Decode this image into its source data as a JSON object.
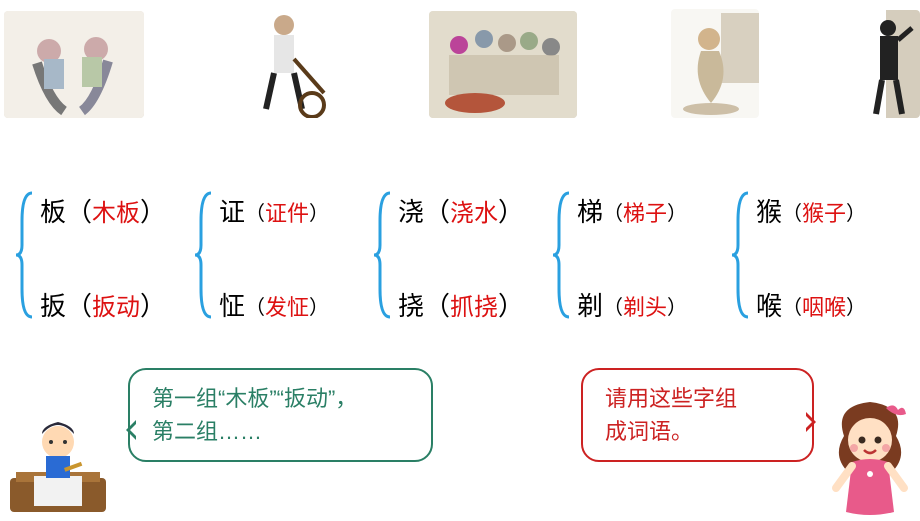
{
  "top_illustrations": [
    {
      "name": "two-boys-fighting",
      "w": 140,
      "h": 107
    },
    {
      "name": "rickshaw-man",
      "w": 98,
      "h": 109
    },
    {
      "name": "crowd-scene",
      "w": 148,
      "h": 107
    },
    {
      "name": "crouching-man",
      "w": 88,
      "h": 109
    },
    {
      "name": "man-at-wall",
      "w": 68,
      "h": 108
    }
  ],
  "groups": [
    {
      "brace_color": "#2aa0e0",
      "top": {
        "char": "板",
        "word": "木板"
      },
      "bot": {
        "char": "扳",
        "word": "扳动"
      }
    },
    {
      "brace_color": "#2aa0e0",
      "top": {
        "char": "证",
        "word": "证件"
      },
      "bot": {
        "char": "怔",
        "word": "发怔"
      },
      "small_paren": true
    },
    {
      "brace_color": "#2aa0e0",
      "top": {
        "char": "浇",
        "word": "浇水"
      },
      "bot": {
        "char": "挠",
        "word": "抓挠"
      }
    },
    {
      "brace_color": "#2aa0e0",
      "top": {
        "char": "梯",
        "word": "梯子"
      },
      "bot": {
        "char": "剃",
        "word": "剃头"
      },
      "small_paren": true
    },
    {
      "brace_color": "#2aa0e0",
      "top": {
        "char": "猴",
        "word": "猴子"
      },
      "bot": {
        "char": "喉",
        "word": "咽喉"
      },
      "small_paren": true
    }
  ],
  "bubbles": {
    "left_line1": "第一组“木板”“扳动”，",
    "left_line2": "第二组……",
    "right_line1": "请用这些字组",
    "right_line2": "成词语。"
  },
  "colors": {
    "brace": "#2aa0e0",
    "answer": "#d11a1a",
    "bubble_green": "#2a7f65",
    "bubble_red": "#c22222"
  }
}
